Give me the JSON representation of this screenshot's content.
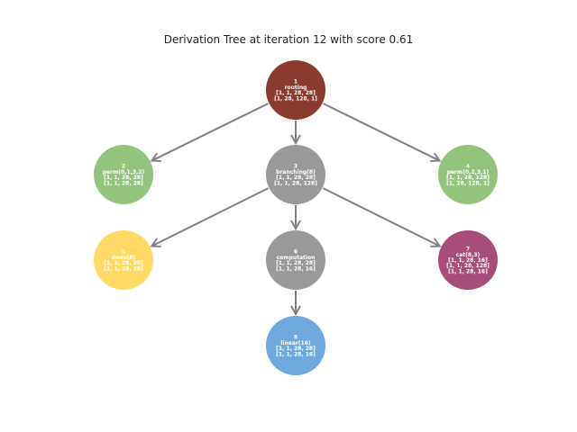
{
  "title": "Derivation Tree at iteration 12 with score 0.61",
  "colors": {
    "edge": "#808080",
    "routing": "#8b3a2e",
    "perm": "#93c47d",
    "branching": "#999999",
    "done": "#ffd966",
    "computation": "#999999",
    "cat": "#a64d79",
    "linear": "#6fa8dc"
  },
  "nodes": [
    {
      "id": "1",
      "lines": [
        "1",
        "routing",
        "[1, 1, 28, 28]",
        "[1, 28, 128, 1]"
      ],
      "color": "#8b3a2e"
    },
    {
      "id": "2",
      "lines": [
        "2",
        "perm(0,1,3,2)",
        "[1, 1, 28, 28]",
        "[1, 1, 28, 28]"
      ],
      "color": "#93c47d"
    },
    {
      "id": "3",
      "lines": [
        "3",
        "branching(8)",
        "[1, 1, 28, 28]",
        "[1, 1, 28, 128]"
      ],
      "color": "#999999"
    },
    {
      "id": "4",
      "lines": [
        "4",
        "perm(0,2,3,1)",
        "[1, 1, 28, 128]",
        "[1, 28, 128, 1]"
      ],
      "color": "#93c47d"
    },
    {
      "id": "5",
      "lines": [
        "5",
        "done(8)",
        "[1, 1, 28, 28]",
        "[1, 1, 28, 28]"
      ],
      "color": "#ffd966"
    },
    {
      "id": "6",
      "lines": [
        "6",
        "computation",
        "[1, 1, 28, 28]",
        "[1, 1, 28, 16]"
      ],
      "color": "#999999"
    },
    {
      "id": "7",
      "lines": [
        "7",
        "cat(8,3)",
        "[1, 1, 28, 16]",
        "[1, 1, 28, 128]",
        "[1, 1, 28, 16]"
      ],
      "color": "#a64d79"
    },
    {
      "id": "8",
      "lines": [
        "8",
        "linear(16)",
        "[1, 1, 28, 28]",
        "[1, 1, 28, 16]"
      ],
      "color": "#6fa8dc"
    }
  ],
  "edges": [
    {
      "from": "1",
      "to": "2"
    },
    {
      "from": "1",
      "to": "3"
    },
    {
      "from": "1",
      "to": "4"
    },
    {
      "from": "3",
      "to": "5"
    },
    {
      "from": "3",
      "to": "6"
    },
    {
      "from": "3",
      "to": "7"
    },
    {
      "from": "6",
      "to": "8"
    }
  ]
}
